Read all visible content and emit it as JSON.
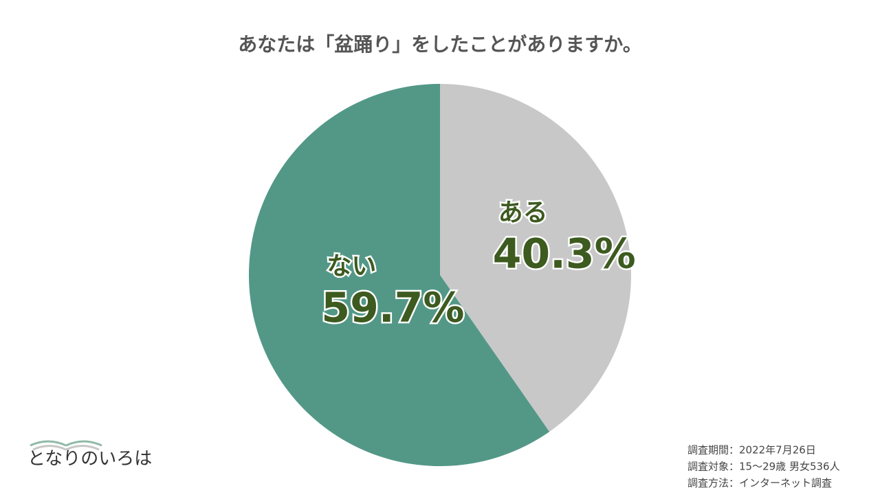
{
  "chart_data": {
    "type": "pie",
    "title": "あなたは「盆踊り」をしたことがありますか。",
    "categories": [
      "ある",
      "ない"
    ],
    "values": [
      40.3,
      59.7
    ],
    "value_labels": [
      "40.3%",
      "59.7%"
    ],
    "colors": [
      "#c8c8c8",
      "#539887"
    ],
    "notes": [
      "調査期間：2022年7月26日",
      "調査対象：15〜29歳 男女536人",
      "調査方法：インターネット調査"
    ],
    "logo": "となりのいろは"
  }
}
